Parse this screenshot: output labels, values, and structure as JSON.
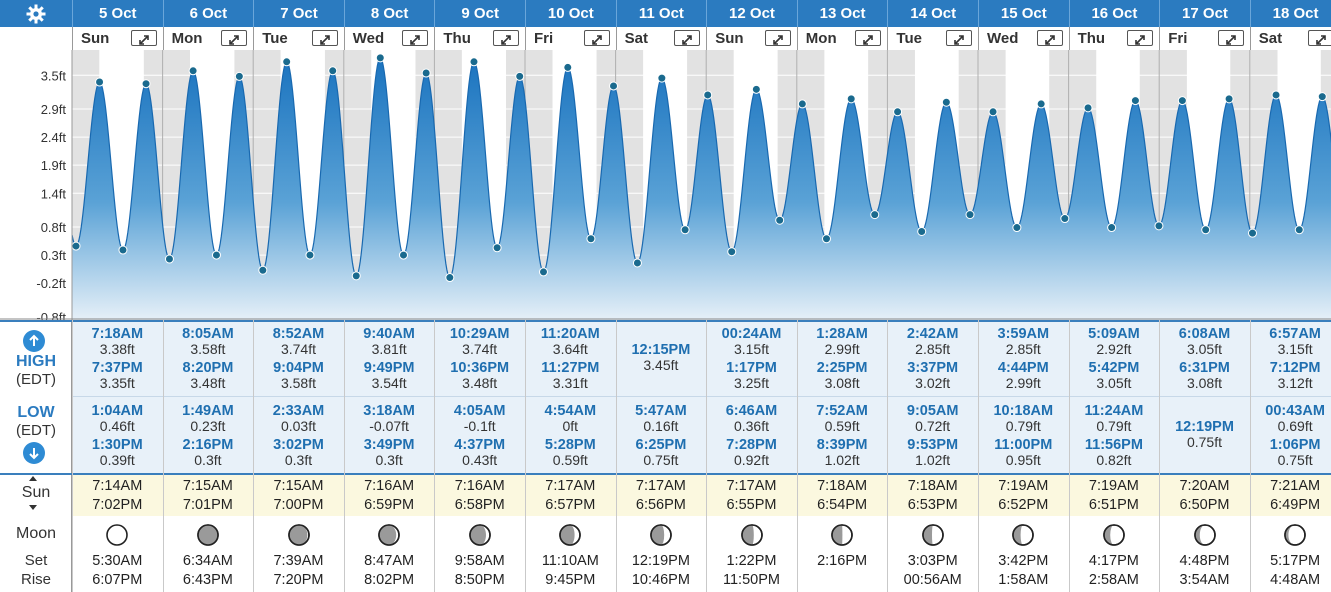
{
  "dates": [
    "5 Oct",
    "6 Oct",
    "7 Oct",
    "8 Oct",
    "9 Oct",
    "10 Oct",
    "11 Oct",
    "12 Oct",
    "13 Oct",
    "14 Oct",
    "15 Oct",
    "16 Oct",
    "17 Oct",
    "18 Oct"
  ],
  "weekdays": [
    "Sun",
    "Mon",
    "Tue",
    "Wed",
    "Thu",
    "Fri",
    "Sat",
    "Sun",
    "Mon",
    "Tue",
    "Wed",
    "Thu",
    "Fri",
    "Sat"
  ],
  "labels": {
    "high": "HIGH",
    "high_tz": "(EDT)",
    "low": "LOW",
    "low_tz": "(EDT)",
    "sun": "Sun",
    "moon": "Moon",
    "set": "Set",
    "rise": "Rise"
  },
  "colors": {
    "header": "#2b7bc0",
    "tide_dark": "#1f78c1",
    "tide_light": "#dbeaf6",
    "point": "#1a6a8e"
  },
  "chart_data": {
    "type": "area",
    "title": "",
    "xlabel": "",
    "ylabel": "",
    "y_unit": "ft",
    "ylim": [
      -0.8,
      3.8
    ],
    "yticks": [
      "3.5ft",
      "2.9ft",
      "2.4ft",
      "1.9ft",
      "1.4ft",
      "0.8ft",
      "0.3ft",
      "-0.2ft",
      "-0.8ft"
    ],
    "ytick_values": [
      3.5,
      2.9,
      2.4,
      1.9,
      1.4,
      0.8,
      0.3,
      -0.2,
      -0.8
    ],
    "x_start": "5 Oct 00:00",
    "x_end": "18 Oct 24:00",
    "extrema": [
      {
        "t": "5 Oct 1:04AM",
        "v": 0.46
      },
      {
        "t": "5 Oct 7:18AM",
        "v": 3.38
      },
      {
        "t": "5 Oct 1:30PM",
        "v": 0.39
      },
      {
        "t": "5 Oct 7:37PM",
        "v": 3.35
      },
      {
        "t": "6 Oct 1:49AM",
        "v": 0.23
      },
      {
        "t": "6 Oct 8:05AM",
        "v": 3.58
      },
      {
        "t": "6 Oct 2:16PM",
        "v": 0.3
      },
      {
        "t": "6 Oct 8:20PM",
        "v": 3.48
      },
      {
        "t": "7 Oct 2:33AM",
        "v": 0.03
      },
      {
        "t": "7 Oct 8:52AM",
        "v": 3.74
      },
      {
        "t": "7 Oct 3:02PM",
        "v": 0.3
      },
      {
        "t": "7 Oct 9:04PM",
        "v": 3.58
      },
      {
        "t": "8 Oct 3:18AM",
        "v": -0.07
      },
      {
        "t": "8 Oct 9:40AM",
        "v": 3.81
      },
      {
        "t": "8 Oct 3:49PM",
        "v": 0.3
      },
      {
        "t": "8 Oct 9:49PM",
        "v": 3.54
      },
      {
        "t": "9 Oct 4:05AM",
        "v": -0.1
      },
      {
        "t": "9 Oct 10:29AM",
        "v": 3.74
      },
      {
        "t": "9 Oct 4:37PM",
        "v": 0.43
      },
      {
        "t": "9 Oct 10:36PM",
        "v": 3.48
      },
      {
        "t": "10 Oct 4:54AM",
        "v": 0
      },
      {
        "t": "10 Oct 11:20AM",
        "v": 3.64
      },
      {
        "t": "10 Oct 5:28PM",
        "v": 0.59
      },
      {
        "t": "10 Oct 11:27PM",
        "v": 3.31
      },
      {
        "t": "11 Oct 5:47AM",
        "v": 0.16
      },
      {
        "t": "11 Oct 12:15PM",
        "v": 3.45
      },
      {
        "t": "11 Oct 6:25PM",
        "v": 0.75
      },
      {
        "t": "12 Oct 00:24AM",
        "v": 3.15
      },
      {
        "t": "12 Oct 6:46AM",
        "v": 0.36
      },
      {
        "t": "12 Oct 1:17PM",
        "v": 3.25
      },
      {
        "t": "12 Oct 7:28PM",
        "v": 0.92
      },
      {
        "t": "13 Oct 1:28AM",
        "v": 2.99
      },
      {
        "t": "13 Oct 7:52AM",
        "v": 0.59
      },
      {
        "t": "13 Oct 2:25PM",
        "v": 3.08
      },
      {
        "t": "13 Oct 8:39PM",
        "v": 1.02
      },
      {
        "t": "14 Oct 2:42AM",
        "v": 2.85
      },
      {
        "t": "14 Oct 9:05AM",
        "v": 0.72
      },
      {
        "t": "14 Oct 3:37PM",
        "v": 3.02
      },
      {
        "t": "14 Oct 9:53PM",
        "v": 1.02
      },
      {
        "t": "15 Oct 3:59AM",
        "v": 2.85
      },
      {
        "t": "15 Oct 10:18AM",
        "v": 0.79
      },
      {
        "t": "15 Oct 4:44PM",
        "v": 2.99
      },
      {
        "t": "15 Oct 11:00PM",
        "v": 0.95
      },
      {
        "t": "16 Oct 5:09AM",
        "v": 2.92
      },
      {
        "t": "16 Oct 11:24AM",
        "v": 0.79
      },
      {
        "t": "16 Oct 5:42PM",
        "v": 3.05
      },
      {
        "t": "16 Oct 11:56PM",
        "v": 0.82
      },
      {
        "t": "17 Oct 6:08AM",
        "v": 3.05
      },
      {
        "t": "17 Oct 12:19PM",
        "v": 0.75
      },
      {
        "t": "17 Oct 6:31PM",
        "v": 3.08
      },
      {
        "t": "18 Oct 00:43AM",
        "v": 0.69
      },
      {
        "t": "18 Oct 6:57AM",
        "v": 3.15
      },
      {
        "t": "18 Oct 1:06PM",
        "v": 0.75
      },
      {
        "t": "18 Oct 7:12PM",
        "v": 3.12
      }
    ],
    "grid": true
  },
  "high": [
    [
      {
        "time": "7:18AM",
        "height": "3.38ft"
      },
      {
        "time": "7:37PM",
        "height": "3.35ft"
      }
    ],
    [
      {
        "time": "8:05AM",
        "height": "3.58ft"
      },
      {
        "time": "8:20PM",
        "height": "3.48ft"
      }
    ],
    [
      {
        "time": "8:52AM",
        "height": "3.74ft"
      },
      {
        "time": "9:04PM",
        "height": "3.58ft"
      }
    ],
    [
      {
        "time": "9:40AM",
        "height": "3.81ft"
      },
      {
        "time": "9:49PM",
        "height": "3.54ft"
      }
    ],
    [
      {
        "time": "10:29AM",
        "height": "3.74ft"
      },
      {
        "time": "10:36PM",
        "height": "3.48ft"
      }
    ],
    [
      {
        "time": "11:20AM",
        "height": "3.64ft"
      },
      {
        "time": "11:27PM",
        "height": "3.31ft"
      }
    ],
    [
      {
        "time": "12:15PM",
        "height": "3.45ft"
      }
    ],
    [
      {
        "time": "00:24AM",
        "height": "3.15ft"
      },
      {
        "time": "1:17PM",
        "height": "3.25ft"
      }
    ],
    [
      {
        "time": "1:28AM",
        "height": "2.99ft"
      },
      {
        "time": "2:25PM",
        "height": "3.08ft"
      }
    ],
    [
      {
        "time": "2:42AM",
        "height": "2.85ft"
      },
      {
        "time": "3:37PM",
        "height": "3.02ft"
      }
    ],
    [
      {
        "time": "3:59AM",
        "height": "2.85ft"
      },
      {
        "time": "4:44PM",
        "height": "2.99ft"
      }
    ],
    [
      {
        "time": "5:09AM",
        "height": "2.92ft"
      },
      {
        "time": "5:42PM",
        "height": "3.05ft"
      }
    ],
    [
      {
        "time": "6:08AM",
        "height": "3.05ft"
      },
      {
        "time": "6:31PM",
        "height": "3.08ft"
      }
    ],
    [
      {
        "time": "6:57AM",
        "height": "3.15ft"
      },
      {
        "time": "7:12PM",
        "height": "3.12ft"
      }
    ]
  ],
  "low": [
    [
      {
        "time": "1:04AM",
        "height": "0.46ft"
      },
      {
        "time": "1:30PM",
        "height": "0.39ft"
      }
    ],
    [
      {
        "time": "1:49AM",
        "height": "0.23ft"
      },
      {
        "time": "2:16PM",
        "height": "0.3ft"
      }
    ],
    [
      {
        "time": "2:33AM",
        "height": "0.03ft"
      },
      {
        "time": "3:02PM",
        "height": "0.3ft"
      }
    ],
    [
      {
        "time": "3:18AM",
        "height": "-0.07ft"
      },
      {
        "time": "3:49PM",
        "height": "0.3ft"
      }
    ],
    [
      {
        "time": "4:05AM",
        "height": "-0.1ft"
      },
      {
        "time": "4:37PM",
        "height": "0.43ft"
      }
    ],
    [
      {
        "time": "4:54AM",
        "height": "0ft"
      },
      {
        "time": "5:28PM",
        "height": "0.59ft"
      }
    ],
    [
      {
        "time": "5:47AM",
        "height": "0.16ft"
      },
      {
        "time": "6:25PM",
        "height": "0.75ft"
      }
    ],
    [
      {
        "time": "6:46AM",
        "height": "0.36ft"
      },
      {
        "time": "7:28PM",
        "height": "0.92ft"
      }
    ],
    [
      {
        "time": "7:52AM",
        "height": "0.59ft"
      },
      {
        "time": "8:39PM",
        "height": "1.02ft"
      }
    ],
    [
      {
        "time": "9:05AM",
        "height": "0.72ft"
      },
      {
        "time": "9:53PM",
        "height": "1.02ft"
      }
    ],
    [
      {
        "time": "10:18AM",
        "height": "0.79ft"
      },
      {
        "time": "11:00PM",
        "height": "0.95ft"
      }
    ],
    [
      {
        "time": "11:24AM",
        "height": "0.79ft"
      },
      {
        "time": "11:56PM",
        "height": "0.82ft"
      }
    ],
    [
      {
        "time": "12:19PM",
        "height": "0.75ft"
      }
    ],
    [
      {
        "time": "00:43AM",
        "height": "0.69ft"
      },
      {
        "time": "1:06PM",
        "height": "0.75ft"
      }
    ]
  ],
  "sun": [
    {
      "rise": "7:14AM",
      "set": "7:02PM"
    },
    {
      "rise": "7:15AM",
      "set": "7:01PM"
    },
    {
      "rise": "7:15AM",
      "set": "7:00PM"
    },
    {
      "rise": "7:16AM",
      "set": "6:59PM"
    },
    {
      "rise": "7:16AM",
      "set": "6:58PM"
    },
    {
      "rise": "7:17AM",
      "set": "6:57PM"
    },
    {
      "rise": "7:17AM",
      "set": "6:56PM"
    },
    {
      "rise": "7:17AM",
      "set": "6:55PM"
    },
    {
      "rise": "7:18AM",
      "set": "6:54PM"
    },
    {
      "rise": "7:18AM",
      "set": "6:53PM"
    },
    {
      "rise": "7:19AM",
      "set": "6:52PM"
    },
    {
      "rise": "7:19AM",
      "set": "6:51PM"
    },
    {
      "rise": "7:20AM",
      "set": "6:50PM"
    },
    {
      "rise": "7:21AM",
      "set": "6:49PM"
    }
  ],
  "moon": [
    {
      "phase": 0.0,
      "set": "5:30AM",
      "rise": "6:07PM"
    },
    {
      "phase": 0.03,
      "set": "6:34AM",
      "rise": "6:43PM"
    },
    {
      "phase": 0.08,
      "set": "7:39AM",
      "rise": "7:20PM"
    },
    {
      "phase": 0.14,
      "set": "8:47AM",
      "rise": "8:02PM"
    },
    {
      "phase": 0.2,
      "set": "9:58AM",
      "rise": "8:50PM"
    },
    {
      "phase": 0.27,
      "set": "11:10AM",
      "rise": "9:45PM"
    },
    {
      "phase": 0.34,
      "set": "12:19PM",
      "rise": "10:46PM"
    },
    {
      "phase": 0.41,
      "set": "1:22PM",
      "rise": "11:50PM"
    },
    {
      "phase": 0.48,
      "set": "2:16PM",
      "rise": ""
    },
    {
      "phase": 0.55,
      "set": "3:03PM",
      "rise": "00:56AM"
    },
    {
      "phase": 0.62,
      "set": "3:42PM",
      "rise": "1:58AM"
    },
    {
      "phase": 0.69,
      "set": "4:17PM",
      "rise": "2:58AM"
    },
    {
      "phase": 0.76,
      "set": "4:48PM",
      "rise": "3:54AM"
    },
    {
      "phase": 0.83,
      "set": "5:17PM",
      "rise": "4:48AM"
    }
  ]
}
